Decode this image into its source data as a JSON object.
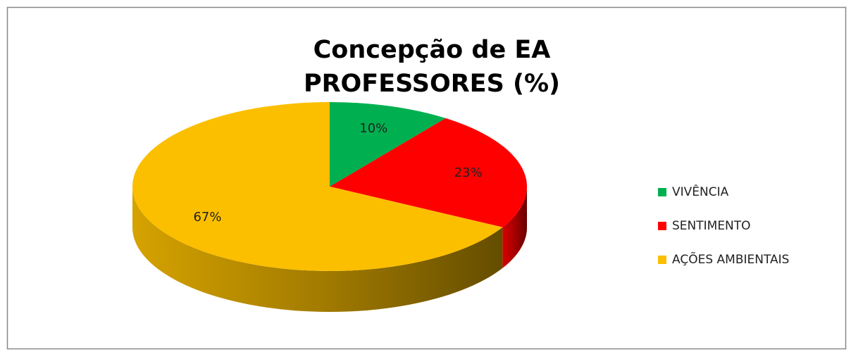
{
  "chart_data": {
    "type": "pie",
    "title": [
      "Concepção de EA",
      "PROFESSORES (%)"
    ],
    "categories": [
      "VIVÊNCIA",
      "SENTIMENTO",
      "AÇÕES AMBIENTAIS"
    ],
    "values": [
      10,
      23,
      67
    ],
    "value_labels": [
      "10%",
      "23%",
      "67%"
    ],
    "colors": [
      "#00b050",
      "#ff0000",
      "#fbbf00"
    ],
    "legend": "right"
  }
}
